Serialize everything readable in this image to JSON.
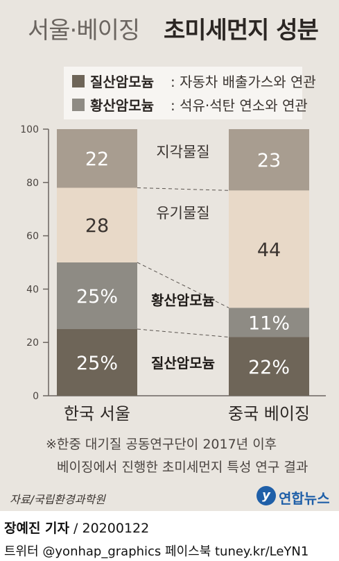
{
  "title": {
    "light": "서울·베이징",
    "bold": "초미세먼지 성분"
  },
  "legend": [
    {
      "name": "질산암모늄",
      "desc": ": 자동차 배출가스와 연관",
      "color": "#6e6558"
    },
    {
      "name": "황산암모늄",
      "desc": ": 석유·석탄 연소와 연관",
      "color": "#8e8b84"
    }
  ],
  "chart_data": {
    "type": "bar",
    "stacked": true,
    "categories": [
      "한국 서울",
      "중국 베이징"
    ],
    "series": [
      {
        "name": "질산암모늄",
        "values": [
          25,
          22
        ],
        "labels": [
          "25%",
          "22%"
        ],
        "color": "#6e6558"
      },
      {
        "name": "황산암모늄",
        "values": [
          25,
          11
        ],
        "labels": [
          "25%",
          "11%"
        ],
        "color": "#8e8b84"
      },
      {
        "name": "유기물질",
        "values": [
          28,
          44
        ],
        "labels": [
          "28",
          "44"
        ],
        "color": "#e8d9c8"
      },
      {
        "name": "지각물질",
        "values": [
          22,
          23
        ],
        "labels": [
          "22",
          "23"
        ],
        "color": "#a89d90"
      }
    ],
    "ylim": [
      0,
      100
    ],
    "yticks": [
      0,
      20,
      40,
      60,
      80,
      100
    ],
    "grid": false
  },
  "footnote": [
    "※한중 대기질 공동연구단이 2017년 이후",
    "베이징에서 진행한 초미세먼지 특성 연구 결과"
  ],
  "source": "자료/국립환경과학원",
  "logo": {
    "mark": "y",
    "text": "연합뉴스"
  },
  "credit": {
    "name": "장예진 기자",
    "date": " / 20200122"
  },
  "social": "트위터 @yonhap_graphics  페이스북 tuney.kr/LeYN1"
}
